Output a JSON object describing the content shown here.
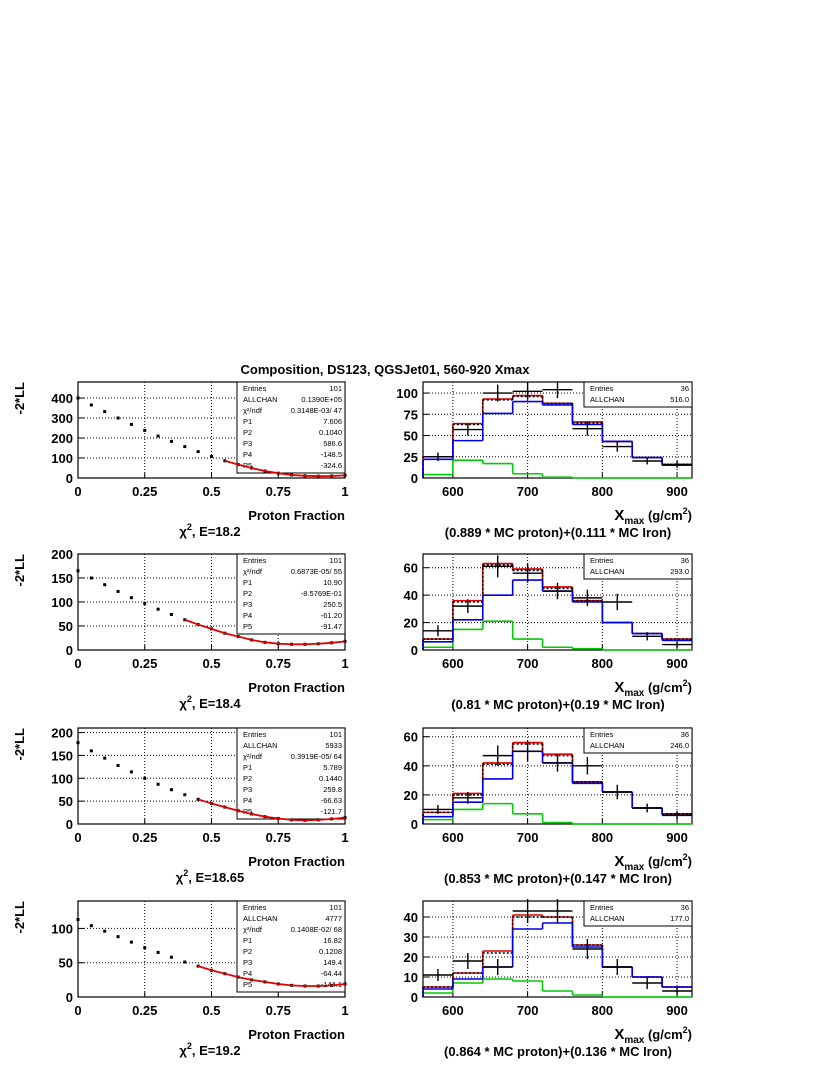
{
  "title": "Composition, DS123, QGSJet01, 560-920 Xmax",
  "chart_data": [
    {
      "type": "line",
      "y_label": "-2*LL",
      "x_label": "Proton Fraction",
      "caption": [
        "χ",
        "2",
        ", E=18.2"
      ],
      "xlim": [
        0,
        1
      ],
      "xticks": [
        0,
        0.25,
        0.5,
        0.75,
        1
      ],
      "ylim": [
        0,
        480
      ],
      "yticks": [
        0,
        100,
        200,
        300,
        400
      ],
      "grid": true,
      "x": [
        0,
        0.05,
        0.1,
        0.15,
        0.2,
        0.25,
        0.3,
        0.35,
        0.4,
        0.45,
        0.5,
        0.55,
        0.6,
        0.65,
        0.7,
        0.75,
        0.8,
        0.85,
        0.9,
        0.95,
        1
      ],
      "series": [
        {
          "color": "#000000",
          "style": "points",
          "values": [
            400,
            365,
            332,
            300,
            268,
            238,
            210,
            183,
            157,
            132,
            108,
            86,
            67,
            50,
            35,
            24,
            15,
            11,
            9,
            10,
            13
          ]
        },
        {
          "color": "#e00000",
          "style": "line",
          "values": [
            null,
            null,
            null,
            null,
            null,
            null,
            null,
            null,
            null,
            null,
            null,
            86,
            67,
            50,
            35,
            24,
            15,
            11,
            9,
            10,
            13
          ]
        }
      ],
      "stats": [
        [
          "Entries",
          "101"
        ],
        [
          "ALLCHAN",
          "0.1390E+05"
        ],
        [
          "χ²/ndf",
          "0.3148E-03/ 47"
        ],
        [
          "P1",
          "7.606"
        ],
        [
          "P2",
          "0.1040"
        ],
        [
          "P3",
          "586.6"
        ],
        [
          "P4",
          "-148.5"
        ],
        [
          "P5",
          "-324.6"
        ]
      ]
    },
    {
      "type": "histogram",
      "x_label": [
        "X",
        "max",
        " (g/cm",
        "2",
        ")"
      ],
      "caption": "(0.889 * MC proton)+(0.111 * MC Iron)",
      "xlim": [
        560,
        920
      ],
      "xticks": [
        600,
        700,
        800,
        900
      ],
      "ylim": [
        0,
        113
      ],
      "yticks": [
        0,
        25,
        50,
        75,
        100
      ],
      "grid": true,
      "bins": [
        560,
        600,
        640,
        680,
        720,
        760,
        800,
        840,
        880,
        920
      ],
      "series": [
        {
          "color": "#00cc00",
          "style": "solid",
          "values": [
            4,
            21,
            17,
            5,
            1,
            0,
            0,
            0,
            0
          ]
        },
        {
          "color": "#e00000",
          "style": "solid",
          "values": [
            25,
            64,
            93,
            97,
            88,
            66,
            43,
            24,
            16
          ]
        },
        {
          "color": "#000000",
          "style": "dotted",
          "values": [
            25,
            63,
            92,
            96,
            88,
            65,
            43,
            24,
            16
          ]
        },
        {
          "color": "#0000e0",
          "style": "solid",
          "values": [
            22,
            44,
            76,
            90,
            86,
            63,
            43,
            24,
            15
          ]
        }
      ],
      "points": {
        "color": "#000000",
        "values": [
          25,
          57,
          100,
          102,
          104,
          58,
          37,
          20,
          16
        ],
        "errors": [
          5,
          7,
          10,
          10,
          10,
          8,
          6,
          4,
          4
        ]
      },
      "stats": [
        [
          "Entries",
          "36"
        ],
        [
          "ALLCHAN",
          "516.0"
        ]
      ]
    },
    {
      "type": "line",
      "y_label": "-2*LL",
      "x_label": "Proton Fraction",
      "caption": [
        "χ",
        "2",
        ", E=18.4"
      ],
      "xlim": [
        0,
        1
      ],
      "xticks": [
        0,
        0.25,
        0.5,
        0.75,
        1
      ],
      "ylim": [
        0,
        200
      ],
      "yticks": [
        0,
        50,
        100,
        150,
        200
      ],
      "grid": true,
      "x": [
        0,
        0.05,
        0.1,
        0.15,
        0.2,
        0.25,
        0.3,
        0.35,
        0.4,
        0.45,
        0.5,
        0.55,
        0.6,
        0.65,
        0.7,
        0.75,
        0.8,
        0.85,
        0.9,
        0.95,
        1
      ],
      "series": [
        {
          "color": "#000000",
          "style": "points",
          "values": [
            165,
            150,
            136,
            122,
            109,
            97,
            85,
            74,
            63,
            53,
            44,
            35,
            28,
            21,
            16,
            13,
            12,
            12,
            13,
            15,
            18
          ]
        },
        {
          "color": "#e00000",
          "style": "line",
          "values": [
            null,
            null,
            null,
            null,
            null,
            null,
            null,
            null,
            63,
            53,
            44,
            35,
            28,
            21,
            16,
            13,
            12,
            12,
            13,
            15,
            18
          ]
        }
      ],
      "stats": [
        [
          "Entries",
          "101"
        ],
        [
          "χ²/ndf",
          "0.6873E-05/ 55"
        ],
        [
          "P1",
          "10.90"
        ],
        [
          "P2",
          "-8.5769E-01"
        ],
        [
          "P3",
          "250.5"
        ],
        [
          "P4",
          "-61.20"
        ],
        [
          "P5",
          "-91.47"
        ]
      ]
    },
    {
      "type": "histogram",
      "x_label": [
        "X",
        "max",
        " (g/cm",
        "2",
        ")"
      ],
      "caption": "(0.81 * MC proton)+(0.19 * MC Iron)",
      "xlim": [
        560,
        920
      ],
      "xticks": [
        600,
        700,
        800,
        900
      ],
      "ylim": [
        0,
        70
      ],
      "yticks": [
        0,
        20,
        40,
        60
      ],
      "grid": true,
      "bins": [
        560,
        600,
        640,
        680,
        720,
        760,
        800,
        840,
        880,
        920
      ],
      "series": [
        {
          "color": "#00cc00",
          "style": "solid",
          "values": [
            2,
            15,
            21,
            8,
            2,
            1,
            0,
            0,
            0
          ]
        },
        {
          "color": "#e00000",
          "style": "solid",
          "values": [
            8,
            36,
            63,
            59,
            46,
            36,
            20,
            12,
            8
          ]
        },
        {
          "color": "#000000",
          "style": "dotted",
          "values": [
            8,
            35,
            62,
            58,
            45,
            36,
            20,
            12,
            8
          ]
        },
        {
          "color": "#0000e0",
          "style": "solid",
          "values": [
            6,
            22,
            40,
            51,
            43,
            35,
            20,
            12,
            7
          ]
        }
      ],
      "points": {
        "color": "#000000",
        "values": [
          14,
          32,
          61,
          56,
          43,
          38,
          35,
          10,
          4
        ],
        "errors": [
          4,
          5,
          8,
          7,
          6,
          6,
          6,
          3,
          2
        ]
      },
      "stats": [
        [
          "Entries",
          "36"
        ],
        [
          "ALLCHAN",
          "293.0"
        ]
      ]
    },
    {
      "type": "line",
      "y_label": "-2*LL",
      "x_label": "Proton Fraction",
      "caption": [
        "χ",
        "2",
        ", E=18.65"
      ],
      "xlim": [
        0,
        1
      ],
      "xticks": [
        0,
        0.25,
        0.5,
        0.75,
        1
      ],
      "ylim": [
        0,
        210
      ],
      "yticks": [
        0,
        50,
        100,
        150,
        200
      ],
      "grid": true,
      "x": [
        0,
        0.05,
        0.1,
        0.15,
        0.2,
        0.25,
        0.3,
        0.35,
        0.4,
        0.45,
        0.5,
        0.55,
        0.6,
        0.65,
        0.7,
        0.75,
        0.8,
        0.85,
        0.9,
        0.95,
        1
      ],
      "series": [
        {
          "color": "#000000",
          "style": "points",
          "values": [
            178,
            160,
            144,
            128,
            114,
            100,
            87,
            75,
            64,
            54,
            45,
            37,
            29,
            22,
            16,
            12,
            9,
            8,
            9,
            11,
            14
          ]
        },
        {
          "color": "#e00000",
          "style": "line",
          "values": [
            null,
            null,
            null,
            null,
            null,
            null,
            null,
            null,
            null,
            54,
            45,
            37,
            29,
            22,
            16,
            12,
            9,
            8,
            9,
            11,
            14
          ]
        }
      ],
      "stats": [
        [
          "Entries",
          "101"
        ],
        [
          "ALLCHAN",
          "5933"
        ],
        [
          "χ²/ndf",
          "0.3919E-05/ 64"
        ],
        [
          "P1",
          "5.789"
        ],
        [
          "P2",
          "0.1440"
        ],
        [
          "P3",
          "259.8"
        ],
        [
          "P4",
          "-66.63"
        ],
        [
          "P5",
          "-121.7"
        ]
      ]
    },
    {
      "type": "histogram",
      "x_label": [
        "X",
        "max",
        " (g/cm",
        "2",
        ")"
      ],
      "caption": "(0.853 * MC proton)+(0.147 * MC Iron)",
      "xlim": [
        560,
        920
      ],
      "xticks": [
        600,
        700,
        800,
        900
      ],
      "ylim": [
        0,
        66
      ],
      "yticks": [
        0,
        20,
        40,
        60
      ],
      "grid": true,
      "bins": [
        560,
        600,
        640,
        680,
        720,
        760,
        800,
        840,
        880,
        920
      ],
      "series": [
        {
          "color": "#00cc00",
          "style": "solid",
          "values": [
            3,
            10,
            14,
            7,
            1,
            0,
            0,
            0,
            0
          ]
        },
        {
          "color": "#e00000",
          "style": "solid",
          "values": [
            8,
            21,
            42,
            56,
            48,
            29,
            22,
            11,
            7
          ]
        },
        {
          "color": "#000000",
          "style": "dotted",
          "values": [
            8,
            20,
            41,
            55,
            47,
            29,
            22,
            11,
            7
          ]
        },
        {
          "color": "#0000e0",
          "style": "solid",
          "values": [
            5,
            15,
            31,
            50,
            42,
            28,
            22,
            11,
            6
          ]
        }
      ],
      "points": {
        "color": "#000000",
        "values": [
          10,
          18,
          47,
          50,
          42,
          40,
          22,
          11,
          6
        ],
        "errors": [
          3,
          4,
          7,
          7,
          6,
          6,
          5,
          3,
          3
        ]
      },
      "stats": [
        [
          "Entries",
          "36"
        ],
        [
          "ALLCHAN",
          "246.0"
        ]
      ]
    },
    {
      "type": "line",
      "y_label": "-2*LL",
      "x_label": "Proton Fraction",
      "caption": [
        "χ",
        "2",
        ", E=19.2"
      ],
      "xlim": [
        0,
        1
      ],
      "xticks": [
        0,
        0.25,
        0.5,
        0.75,
        1
      ],
      "ylim": [
        0,
        140
      ],
      "yticks": [
        0,
        50,
        100
      ],
      "grid": true,
      "x": [
        0,
        0.05,
        0.1,
        0.15,
        0.2,
        0.25,
        0.3,
        0.35,
        0.4,
        0.45,
        0.5,
        0.55,
        0.6,
        0.65,
        0.7,
        0.75,
        0.8,
        0.85,
        0.9,
        0.95,
        1
      ],
      "series": [
        {
          "color": "#000000",
          "style": "points",
          "values": [
            113,
            104,
            96,
            88,
            80,
            72,
            65,
            58,
            51,
            45,
            39,
            34,
            29,
            25,
            22,
            19,
            17,
            16,
            16,
            17,
            19
          ]
        },
        {
          "color": "#e00000",
          "style": "line",
          "values": [
            null,
            null,
            null,
            null,
            null,
            null,
            null,
            null,
            null,
            45,
            39,
            34,
            29,
            25,
            22,
            19,
            17,
            16,
            16,
            17,
            19
          ]
        }
      ],
      "stats": [
        [
          "Entries",
          "101"
        ],
        [
          "ALLCHAN",
          "4777"
        ],
        [
          "χ²/ndf",
          "0.1408E-02/ 68"
        ],
        [
          "P1",
          "16.82"
        ],
        [
          "P2",
          "0.1208"
        ],
        [
          "P3",
          "149.4"
        ],
        [
          "P4",
          "-64.44"
        ],
        [
          "P5",
          "-144.1"
        ]
      ]
    },
    {
      "type": "histogram",
      "x_label": [
        "X",
        "max",
        " (g/cm",
        "2",
        ")"
      ],
      "caption": "(0.864 * MC proton)+(0.136 * MC Iron)",
      "xlim": [
        560,
        920
      ],
      "xticks": [
        600,
        700,
        800,
        900
      ],
      "ylim": [
        0,
        48
      ],
      "yticks": [
        0,
        10,
        20,
        30,
        40
      ],
      "grid": true,
      "bins": [
        560,
        600,
        640,
        680,
        720,
        760,
        800,
        840,
        880,
        920
      ],
      "series": [
        {
          "color": "#00cc00",
          "style": "solid",
          "values": [
            2,
            7,
            9,
            8,
            3,
            1,
            0,
            0,
            0
          ]
        },
        {
          "color": "#e00000",
          "style": "solid",
          "values": [
            5,
            12,
            23,
            41,
            40,
            26,
            15,
            10,
            5
          ]
        },
        {
          "color": "#000000",
          "style": "dotted",
          "values": [
            5,
            12,
            22,
            40,
            40,
            26,
            15,
            10,
            5
          ]
        },
        {
          "color": "#0000e0",
          "style": "solid",
          "values": [
            4,
            9,
            15,
            34,
            37,
            25,
            15,
            10,
            5
          ]
        }
      ],
      "points": {
        "color": "#000000",
        "values": [
          11,
          18,
          15,
          43,
          43,
          24,
          15,
          7,
          3
        ],
        "errors": [
          3,
          4,
          4,
          6,
          6,
          5,
          4,
          3,
          2
        ]
      },
      "stats": [
        [
          "Entries",
          "36"
        ],
        [
          "ALLCHAN",
          "177.0"
        ]
      ]
    }
  ]
}
